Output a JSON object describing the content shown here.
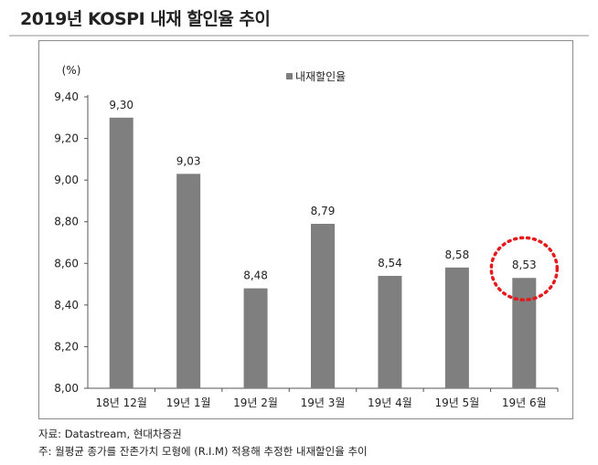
{
  "title": "2019년 KOSPI 내재 할인율 추이",
  "chart_data": {
    "type": "bar",
    "unit_label": "(%)",
    "categories": [
      "18년 12월",
      "19년 1월",
      "19년 2월",
      "19년 3월",
      "19년 4월",
      "19년 5월",
      "19년 6월"
    ],
    "series": [
      {
        "name": "내재할인율",
        "values": [
          9.3,
          9.03,
          8.48,
          8.79,
          8.54,
          8.58,
          8.53
        ],
        "color": "#7f7f7f"
      }
    ],
    "value_labels": [
      "9,30",
      "9,03",
      "8,48",
      "8,79",
      "8,54",
      "8,58",
      "8,53"
    ],
    "y_ticks": [
      8.0,
      8.2,
      8.4,
      8.6,
      8.8,
      9.0,
      9.2,
      9.4
    ],
    "y_tick_labels": [
      "8,00",
      "8,20",
      "8,40",
      "8,60",
      "8,80",
      "9,00",
      "9,20",
      "9,40"
    ],
    "ylim": [
      8.0,
      9.4
    ],
    "grid": false,
    "legend_position": "top-center",
    "highlight": {
      "index": 6,
      "style": "dotted-circle",
      "color": "#e41a1c"
    }
  },
  "footer": {
    "source": "자료: Datastream, 현대차증권",
    "note": "주: 월평균 종가를 잔존가치 모형에 (R.I.M) 적용해 추정한 내재할인율 추이"
  }
}
